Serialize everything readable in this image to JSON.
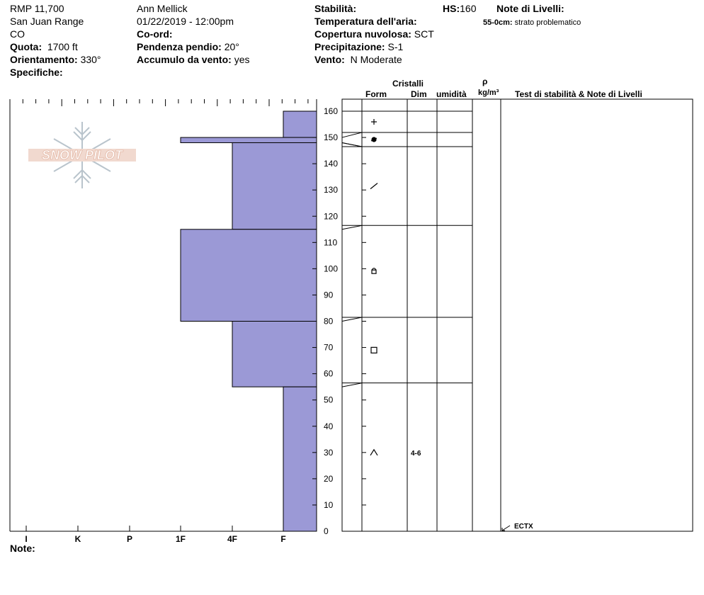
{
  "header": {
    "col1": {
      "location": "RMP 11,700",
      "range": "San Juan Range",
      "state": "CO",
      "elevation_label": "Quota:",
      "elevation_value": "1700 ft",
      "aspect_label": "Orientamento:",
      "aspect_value": "330°",
      "specifics_label": "Specifiche:"
    },
    "col2": {
      "observer": "Ann Mellick",
      "datetime": "01/22/2019 - 12:00pm",
      "coord_label": "Co-ord:",
      "slope_label": "Pendenza pendio:",
      "slope_value": "20°",
      "wind_loading_label": "Accumulo da vento:",
      "wind_loading_value": "yes"
    },
    "col3": {
      "stability_label": "Stabilità:",
      "air_temp_label": "Temperatura dell'aria:",
      "cloud_label": "Copertura nuvolosa:",
      "cloud_value": "SCT",
      "precip_label": "Precipitazione:",
      "precip_value": "S-1",
      "wind_label": "Vento:",
      "wind_value": "N Moderate"
    },
    "hs_label": "HS:",
    "hs_value": "160",
    "layer_notes_label": "Note di Livelli:",
    "layer_note_depth": "55-0cm:",
    "layer_note_text": "strato problematico"
  },
  "logo_text": "SNOW PILOT",
  "notes_label": "Note:",
  "table_headers": {
    "crystals": "Cristalli",
    "form": "Form",
    "dim": "Dim",
    "moisture": "umidità",
    "rho": "ρ",
    "density_unit": "kg/m³",
    "tests": "Test di stabilità & Note di Livelli"
  },
  "colors": {
    "hardness_fill": "#9b99d6",
    "line": "#000000"
  },
  "chart_data": {
    "type": "bar",
    "hardness_axis": {
      "ticks": [
        "I",
        "K",
        "P",
        "1F",
        "4F",
        "F"
      ]
    },
    "depth_axis": {
      "ylim": [
        0,
        160
      ],
      "ticks": [
        0,
        10,
        20,
        30,
        40,
        50,
        60,
        70,
        80,
        90,
        100,
        110,
        120,
        130,
        140,
        150,
        160
      ]
    },
    "layers": [
      {
        "top": 160,
        "bottom": 150,
        "hardness": "F",
        "form": "plus-icon",
        "size": ""
      },
      {
        "top": 150,
        "bottom": 148,
        "hardness": "1F",
        "form": "dot-icon",
        "size": ""
      },
      {
        "top": 148,
        "bottom": 115,
        "hardness": "4F",
        "form": "slash-icon",
        "size": ""
      },
      {
        "top": 115,
        "bottom": 80,
        "hardness": "1F",
        "form": "half-square-icon",
        "size": ""
      },
      {
        "top": 80,
        "bottom": 55,
        "hardness": "4F",
        "form": "square-icon",
        "size": ""
      },
      {
        "top": 55,
        "bottom": 0,
        "hardness": "F",
        "form": "caret-icon",
        "size": "4-6"
      }
    ],
    "tests": [
      {
        "depth": 0,
        "label": "ECTX"
      }
    ]
  }
}
